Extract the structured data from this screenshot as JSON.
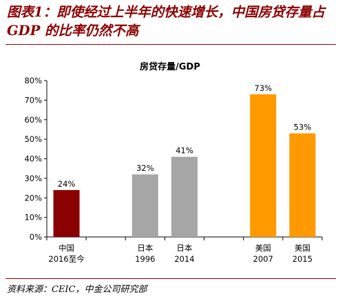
{
  "figure": {
    "title_line1": "图表1：即使经过上半年的快速增长，中国房贷存量占",
    "title_line2": "GDP 的比率仍然不高",
    "source": "资料来源：CEIC，中金公司研究部"
  },
  "chart_data": {
    "type": "bar",
    "title": "房贷存量/GDP",
    "categories": [
      [
        "中国",
        "2016至今"
      ],
      [
        "日本",
        "1996"
      ],
      [
        "日本",
        "2014"
      ],
      [
        "美国",
        "2007"
      ],
      [
        "美国",
        "2015"
      ]
    ],
    "values": [
      24,
      32,
      41,
      73,
      53
    ],
    "data_labels": [
      "24%",
      "32%",
      "41%",
      "73%",
      "53%"
    ],
    "bar_colors": [
      "#8b0000",
      "#a6a6a6",
      "#a6a6a6",
      "#ff9900",
      "#ff9900"
    ],
    "y_ticks": [
      "0%",
      "10%",
      "20%",
      "30%",
      "40%",
      "50%",
      "60%",
      "70%",
      "80%"
    ],
    "ylim": [
      0,
      80
    ],
    "grid": false,
    "legend": "none"
  }
}
